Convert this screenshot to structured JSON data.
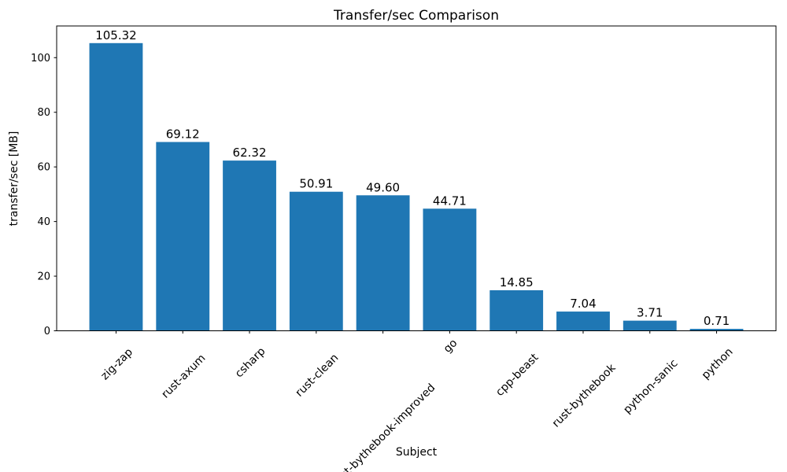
{
  "chart_data": {
    "type": "bar",
    "title": "Transfer/sec Comparison",
    "xlabel": "Subject",
    "ylabel": "transfer/sec [MB]",
    "categories": [
      "zig-zap",
      "rust-axum",
      "csharp",
      "rust-clean",
      "rust-bythebook-improved",
      "go",
      "cpp-beast",
      "rust-bythebook",
      "python-sanic",
      "python"
    ],
    "values": [
      105.32,
      69.12,
      62.32,
      50.91,
      49.6,
      44.71,
      14.85,
      7.04,
      3.71,
      0.71
    ],
    "value_labels": [
      "105.32",
      "69.12",
      "62.32",
      "50.91",
      "49.60",
      "44.71",
      "14.85",
      "7.04",
      "3.71",
      "0.71"
    ],
    "yticks": [
      0,
      20,
      40,
      60,
      80,
      100
    ],
    "ylim": [
      0,
      111.6
    ],
    "xtick_rotation_deg": 45,
    "bar_color": "#1f77b4",
    "axis_color": "#000000",
    "grid": false,
    "legend_position": "none"
  }
}
